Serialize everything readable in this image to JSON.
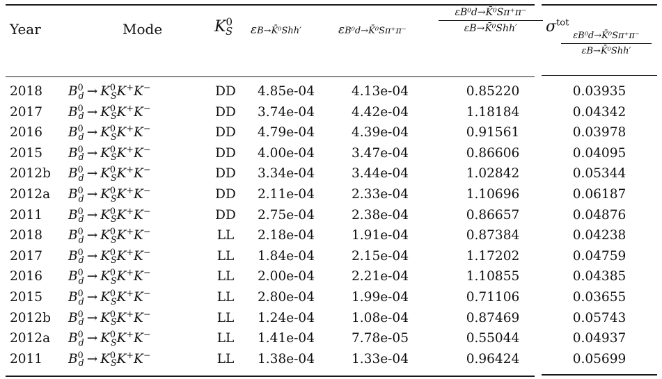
{
  "headers": {
    "year": "Year",
    "mode": "Mode",
    "ks": "K",
    "ks_sub": "S",
    "ks_sup": "0",
    "eff_b": "ε",
    "eff_b_sub": "B→K̄⁰Shh′",
    "eff_bd": "ε",
    "eff_bd_sub": "B⁰d→K̄⁰Sπ⁺π⁻",
    "ratio_num": "εB⁰d→K̄⁰Sπ⁺π⁻",
    "ratio_den": "εB→K̄⁰Shh′",
    "sigma": "σ",
    "sigma_sup": "tot",
    "sigma_num": "εB⁰d→K̄⁰Sπ⁺π⁻",
    "sigma_den": "εB→K̄⁰Shh′"
  },
  "mode_text": {
    "b": "B",
    "b_sub": "d",
    "b_sup": "0",
    "arrow": "→",
    "k": "K",
    "k_sub": "S",
    "k_sup": "0",
    "kp": "K",
    "kp_sup": "+",
    "km": "K",
    "km_sup": "−"
  },
  "rows": [
    {
      "year": "2018",
      "ks": "DD",
      "eff_b": "4.85e-04",
      "eff_bd": "4.13e-04",
      "ratio": "0.85220",
      "sigma": "0.03935"
    },
    {
      "year": "2017",
      "ks": "DD",
      "eff_b": "3.74e-04",
      "eff_bd": "4.42e-04",
      "ratio": "1.18184",
      "sigma": "0.04342"
    },
    {
      "year": "2016",
      "ks": "DD",
      "eff_b": "4.79e-04",
      "eff_bd": "4.39e-04",
      "ratio": "0.91561",
      "sigma": "0.03978"
    },
    {
      "year": "2015",
      "ks": "DD",
      "eff_b": "4.00e-04",
      "eff_bd": "3.47e-04",
      "ratio": "0.86606",
      "sigma": "0.04095"
    },
    {
      "year": "2012b",
      "ks": "DD",
      "eff_b": "3.34e-04",
      "eff_bd": "3.44e-04",
      "ratio": "1.02842",
      "sigma": "0.05344"
    },
    {
      "year": "2012a",
      "ks": "DD",
      "eff_b": "2.11e-04",
      "eff_bd": "2.33e-04",
      "ratio": "1.10696",
      "sigma": "0.06187"
    },
    {
      "year": "2011",
      "ks": "DD",
      "eff_b": "2.75e-04",
      "eff_bd": "2.38e-04",
      "ratio": "0.86657",
      "sigma": "0.04876"
    },
    {
      "year": "2018",
      "ks": "LL",
      "eff_b": "2.18e-04",
      "eff_bd": "1.91e-04",
      "ratio": "0.87384",
      "sigma": "0.04238"
    },
    {
      "year": "2017",
      "ks": "LL",
      "eff_b": "1.84e-04",
      "eff_bd": "2.15e-04",
      "ratio": "1.17202",
      "sigma": "0.04759"
    },
    {
      "year": "2016",
      "ks": "LL",
      "eff_b": "2.00e-04",
      "eff_bd": "2.21e-04",
      "ratio": "1.10855",
      "sigma": "0.04385"
    },
    {
      "year": "2015",
      "ks": "LL",
      "eff_b": "2.80e-04",
      "eff_bd": "1.99e-04",
      "ratio": "0.71106",
      "sigma": "0.03655"
    },
    {
      "year": "2012b",
      "ks": "LL",
      "eff_b": "1.24e-04",
      "eff_bd": "1.08e-04",
      "ratio": "0.87469",
      "sigma": "0.05743"
    },
    {
      "year": "2012a",
      "ks": "LL",
      "eff_b": "1.41e-04",
      "eff_bd": "7.78e-05",
      "ratio": "0.55044",
      "sigma": "0.04937"
    },
    {
      "year": "2011",
      "ks": "LL",
      "eff_b": "1.38e-04",
      "eff_bd": "1.33e-04",
      "ratio": "0.96424",
      "sigma": "0.05699"
    }
  ]
}
